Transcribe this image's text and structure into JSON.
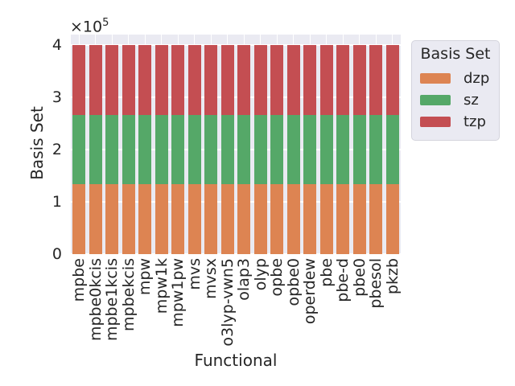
{
  "colors": {
    "figure_bg": "#ffffff",
    "plot_bg": "#eaeaf2",
    "grid": "#ffffff",
    "text": "#262626",
    "legend_bg": "#eaeaf2",
    "legend_border": "#d4d4dd"
  },
  "chart_data": {
    "type": "bar",
    "stacked": true,
    "xlabel": "Functional",
    "ylabel": "Basis Set",
    "y_offset": {
      "prefix": "×10",
      "exponent": "5"
    },
    "ylim": [
      0,
      420000
    ],
    "yticks": [
      0,
      100000,
      200000,
      300000,
      400000
    ],
    "ytick_labels": [
      "0",
      "1",
      "2",
      "3",
      "4"
    ],
    "grid": true,
    "legend": {
      "title": "Basis Set",
      "position": "outside upper right"
    },
    "categories": [
      "mpbe",
      "mpbe0kcis",
      "mpbe1kcis",
      "mpbekcis",
      "mpw",
      "mpw1k",
      "mpw1pw",
      "mvs",
      "mvsx",
      "o3lyp-vwn5",
      "olap3",
      "olyp",
      "opbe",
      "opbe0",
      "operdew",
      "pbe",
      "pbe-d",
      "pbe0",
      "pbesol",
      "pkzb"
    ],
    "series": [
      {
        "name": "dzp",
        "color": "#dd8452",
        "values": [
          133333,
          133333,
          133333,
          133333,
          133333,
          133333,
          133333,
          133333,
          133333,
          133333,
          133333,
          133333,
          133333,
          133333,
          133333,
          133333,
          133333,
          133333,
          133333,
          133333
        ]
      },
      {
        "name": "sz",
        "color": "#55a868",
        "values": [
          133333,
          133333,
          133333,
          133333,
          133333,
          133333,
          133333,
          133333,
          133333,
          133333,
          133333,
          133333,
          133333,
          133333,
          133333,
          133333,
          133333,
          133333,
          133333,
          133333
        ]
      },
      {
        "name": "tzp",
        "color": "#c44e52",
        "values": [
          133333,
          133333,
          133333,
          133333,
          133333,
          133333,
          133333,
          133333,
          133333,
          133333,
          133333,
          133333,
          133333,
          133333,
          133333,
          133333,
          133333,
          133333,
          133333,
          133333
        ]
      }
    ]
  }
}
